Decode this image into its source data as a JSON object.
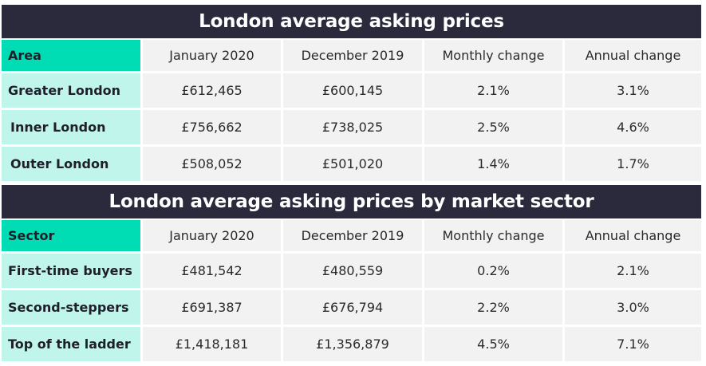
{
  "tables": [
    {
      "title": "London average asking prices",
      "headers": [
        "Area",
        "January 2020",
        "December 2019",
        "Monthly change",
        "Annual change"
      ],
      "rows": [
        {
          "label": "Greater London",
          "jan": "£612,465",
          "dec": "£600,145",
          "monthly": "2.1%",
          "annual": "3.1%"
        },
        {
          "label": "Inner London",
          "jan": "£756,662",
          "dec": "£738,025",
          "monthly": "2.5%",
          "annual": "4.6%"
        },
        {
          "label": "Outer London",
          "jan": "£508,052",
          "dec": "£501,020",
          "monthly": "1.4%",
          "annual": "1.7%"
        }
      ]
    },
    {
      "title": "London average asking prices by market sector",
      "headers": [
        "Sector",
        "January 2020",
        "December 2019",
        "Monthly change",
        "Annual change"
      ],
      "rows": [
        {
          "label": "First-time buyers",
          "jan": "£481,542",
          "dec": "£480,559",
          "monthly": "0.2%",
          "annual": "2.1%"
        },
        {
          "label": "Second-steppers",
          "jan": "£691,387",
          "dec": "£676,794",
          "monthly": "2.2%",
          "annual": "3.0%"
        },
        {
          "label": "Top of the ladder",
          "jan": "£1,418,181",
          "dec": "£1,356,879",
          "monthly": "4.5%",
          "annual": "7.1%"
        }
      ]
    }
  ],
  "colors": {
    "title_bar": "#2b2a3c",
    "label_header": "#00dcb3",
    "row_label": "#bff5ea",
    "cell": "#f2f2f2"
  }
}
